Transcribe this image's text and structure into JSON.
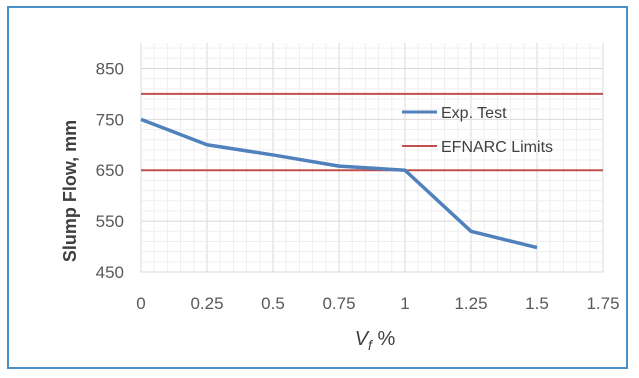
{
  "chart_data": {
    "type": "line",
    "title": "",
    "xlabel_main": "V",
    "xlabel_sub": "f",
    "xlabel_suffix": " %",
    "ylabel": "Slump Flow, mm",
    "xlim": [
      0,
      1.75
    ],
    "ylim": [
      450,
      900
    ],
    "x_ticks": [
      "0",
      "0.25",
      "0.5",
      "0.75",
      "1",
      "1.25",
      "1.5",
      "1.75"
    ],
    "y_ticks": [
      "450",
      "550",
      "650",
      "750",
      "850"
    ],
    "grid": true,
    "legend_position": "right-inside",
    "series": [
      {
        "name": "Exp. Test",
        "color": "#4f81bd",
        "x": [
          0,
          0.25,
          0.5,
          0.75,
          1,
          1.25,
          1.5
        ],
        "y": [
          750,
          700,
          680,
          658,
          650,
          530,
          498
        ]
      },
      {
        "name": "EFNARC Limits",
        "color": "#c0504d",
        "lines_y": [
          800,
          650
        ]
      }
    ]
  }
}
